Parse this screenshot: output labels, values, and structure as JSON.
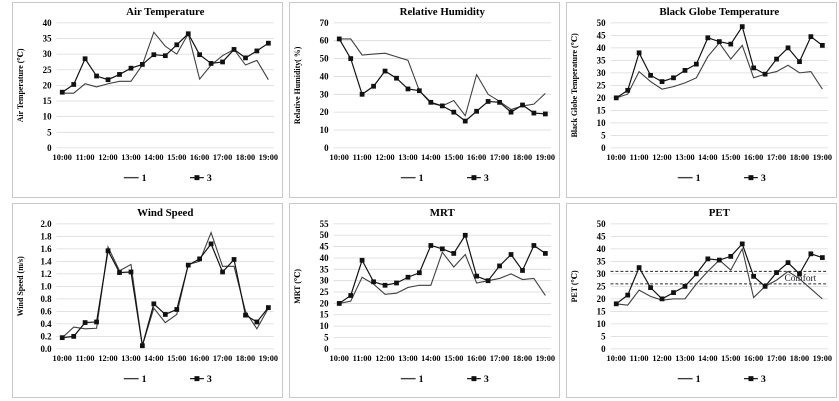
{
  "style": {
    "background": "#ffffff",
    "panel_border": "#c9c9c9",
    "grid_color": "#d9d9d9",
    "series1_color": "#3f3f3f",
    "series3_color": "#111111",
    "text_color": "#000000"
  },
  "legend": {
    "series1_label": "1",
    "series3_label": "3"
  },
  "categories": [
    "10:00",
    "10:30",
    "11:00",
    "11:30",
    "12:00",
    "12:30",
    "13:00",
    "13:30",
    "14:00",
    "14:30",
    "15:00",
    "15:30",
    "16:00",
    "16:30",
    "17:00",
    "17:30",
    "18:00",
    "18:30",
    "19:00"
  ],
  "x_tick_labels": [
    "10:00",
    "11:00",
    "12:00",
    "13:00",
    "14:00",
    "15:00",
    "16:00",
    "17:00",
    "18:00",
    "19:00"
  ],
  "chart_data": [
    {
      "type": "line",
      "title": "Air Temperature",
      "ylabel": "Air Temperature  (℃)",
      "ylim": [
        0,
        40
      ],
      "ytick_step": 5,
      "ydecimals": 0,
      "grid": true,
      "legend_position": "bottom",
      "series": [
        {
          "name": "1",
          "values": [
            17.5,
            17.5,
            20.5,
            19.5,
            20.5,
            21.3,
            21.3,
            26.5,
            37,
            32.5,
            30,
            36.5,
            22,
            26.5,
            29.5,
            31.5,
            26.5,
            28,
            21.8
          ]
        },
        {
          "name": "3",
          "values": [
            17.8,
            20.3,
            28.5,
            23,
            21.8,
            23.5,
            25.5,
            26.7,
            29.8,
            29.5,
            33,
            36.5,
            29.8,
            27,
            27.5,
            31.5,
            28.8,
            31,
            33.5
          ]
        }
      ]
    },
    {
      "type": "line",
      "title": "Relative Humidity",
      "ylabel": "Relative Humidity( %)",
      "ylim": [
        0,
        70
      ],
      "ytick_step": 10,
      "ydecimals": 0,
      "grid": true,
      "legend_position": "bottom",
      "series": [
        {
          "name": "1",
          "values": [
            61,
            61,
            52,
            52.5,
            53,
            51,
            49,
            32,
            25,
            23.5,
            26.5,
            18,
            41,
            30,
            26,
            21.5,
            23.5,
            24.5,
            30.5
          ]
        },
        {
          "name": "3",
          "values": [
            61,
            50,
            30,
            34.5,
            43,
            39,
            33,
            32,
            25.5,
            23.5,
            20,
            15,
            20.5,
            26,
            25.5,
            20,
            24,
            19.5,
            19
          ]
        }
      ]
    },
    {
      "type": "line",
      "title": "Black Globe Temperature",
      "ylabel": "Black Globe Temperature  (℃)",
      "ylim": [
        0,
        50
      ],
      "ytick_step": 5,
      "ydecimals": 0,
      "grid": true,
      "legend_position": "bottom",
      "series": [
        {
          "name": "1",
          "values": [
            20,
            21.5,
            30.5,
            26.5,
            23.5,
            24.5,
            26,
            28,
            36.5,
            42,
            35.5,
            41,
            28,
            29.5,
            30.5,
            33,
            30,
            30.5,
            23.5
          ]
        },
        {
          "name": "3",
          "values": [
            20,
            23,
            38,
            29,
            26.5,
            28,
            31,
            33.5,
            44,
            42.5,
            41.5,
            48.5,
            32,
            29.5,
            35.5,
            40,
            34.5,
            44.5,
            41
          ]
        }
      ]
    },
    {
      "type": "line",
      "title": "Wind Speed",
      "ylabel": "Wind Speed  (m/s)",
      "ylim": [
        0,
        2.0
      ],
      "ytick_step": 0.2,
      "ydecimals": 1,
      "grid": true,
      "legend_position": "bottom",
      "series": [
        {
          "name": "1",
          "values": [
            0.18,
            0.35,
            0.32,
            0.33,
            1.63,
            1.25,
            1.35,
            0.05,
            0.65,
            0.42,
            0.55,
            1.35,
            1.4,
            1.86,
            1.32,
            1.32,
            0.6,
            0.32,
            0.65
          ]
        },
        {
          "name": "3",
          "values": [
            0.18,
            0.2,
            0.42,
            0.43,
            1.57,
            1.22,
            1.23,
            0.05,
            0.72,
            0.55,
            0.63,
            1.34,
            1.44,
            1.68,
            1.23,
            1.43,
            0.54,
            0.43,
            0.66
          ]
        }
      ]
    },
    {
      "type": "line",
      "title": "MRT",
      "ylabel": "MRT  (℃)",
      "ylim": [
        0,
        55
      ],
      "ytick_step": 5,
      "ydecimals": 0,
      "grid": true,
      "legend_position": "bottom",
      "series": [
        {
          "name": "1",
          "values": [
            20,
            21,
            31.5,
            28.5,
            24,
            24.5,
            27,
            28,
            28,
            42.5,
            36,
            41.5,
            29,
            30,
            31,
            33,
            30.5,
            31,
            23.5
          ]
        },
        {
          "name": "3",
          "values": [
            20,
            23.5,
            39,
            29.5,
            28,
            29,
            31.5,
            33.5,
            45.5,
            44,
            42,
            50,
            32,
            30,
            36.5,
            41.5,
            34.5,
            45.5,
            42
          ]
        }
      ]
    },
    {
      "type": "line",
      "title": "PET",
      "ylabel": "PET  (℃)",
      "ylim": [
        0,
        50
      ],
      "ytick_step": 5,
      "ydecimals": 0,
      "grid": true,
      "legend_position": "bottom",
      "annotations": {
        "comfort_lines": [
          26,
          31
        ],
        "comfort_label": "Comfort"
      },
      "series": [
        {
          "name": "1",
          "values": [
            18,
            17.5,
            23.5,
            21,
            19.5,
            20,
            20,
            26,
            31,
            35.5,
            31.5,
            40,
            20.5,
            25,
            27.5,
            31,
            28,
            24,
            20
          ]
        },
        {
          "name": "3",
          "values": [
            18,
            21.5,
            32.5,
            24.5,
            20,
            22.5,
            25,
            30,
            36,
            35.5,
            37,
            42,
            29,
            25,
            30.5,
            34.5,
            30,
            38,
            36.5
          ]
        }
      ]
    }
  ]
}
